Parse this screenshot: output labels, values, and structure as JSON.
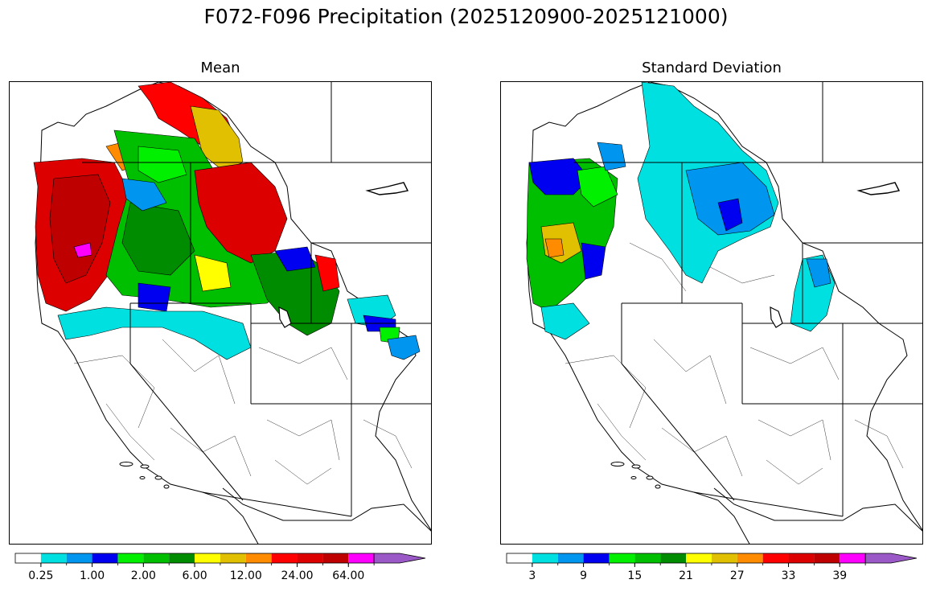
{
  "title": "F072-F096 Precipitation (2025120900-2025121000)",
  "panels": [
    {
      "id": "mean",
      "title": "Mean",
      "colorbar": {
        "colors": [
          "#ffffff",
          "#00e0e0",
          "#0096f0",
          "#0000f0",
          "#00f000",
          "#00be00",
          "#008c00",
          "#ffff00",
          "#e0c000",
          "#ff8c00",
          "#ff0000",
          "#dc0000",
          "#be0000",
          "#ff00ff",
          "#9b59c8"
        ],
        "tick_labels": [
          "0.25",
          "1.00",
          "2.00",
          "6.00",
          "12.00",
          "24.00",
          "64.00"
        ],
        "extend": "max"
      }
    },
    {
      "id": "std",
      "title": "Standard Deviation",
      "colorbar": {
        "colors": [
          "#ffffff",
          "#00e0e0",
          "#0096f0",
          "#0000f0",
          "#00f000",
          "#00be00",
          "#008c00",
          "#ffff00",
          "#e0c000",
          "#ff8c00",
          "#ff0000",
          "#dc0000",
          "#be0000",
          "#ff00ff",
          "#9b59c8"
        ],
        "tick_labels": [
          "3",
          "9",
          "15",
          "21",
          "27",
          "33",
          "39"
        ],
        "extend": "max"
      }
    }
  ]
}
